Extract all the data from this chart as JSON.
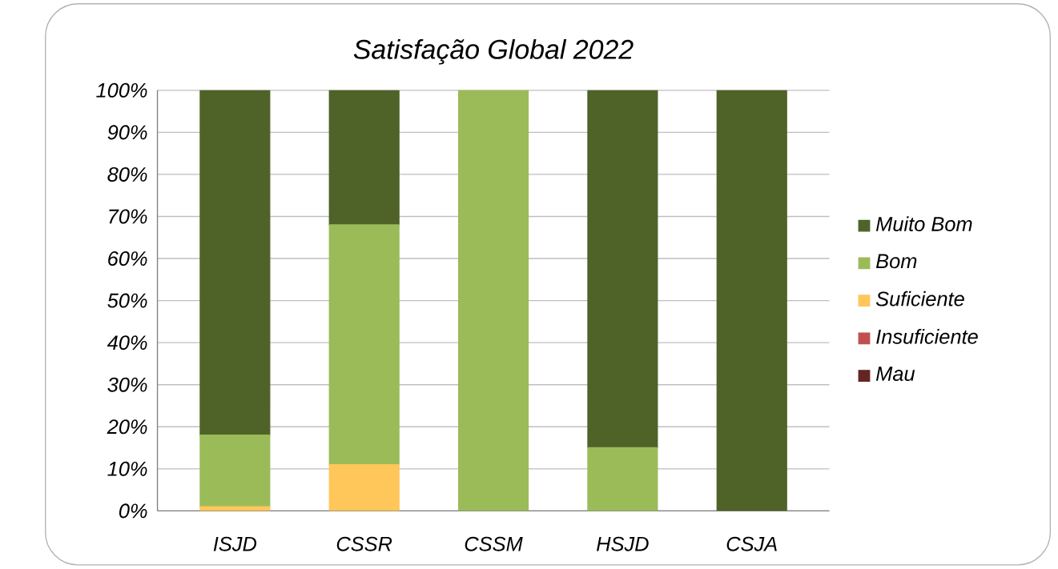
{
  "chart_data": {
    "type": "bar",
    "title": "Satisfação Global 2022",
    "stacked": true,
    "categories": [
      "ISJD",
      "CSSR",
      "CSSM",
      "HSJD",
      "CSJA"
    ],
    "series": [
      {
        "name": "Mau",
        "color": "#632523",
        "values": [
          0,
          0,
          0,
          0,
          0
        ]
      },
      {
        "name": "Insuficiente",
        "color": "#c0504d",
        "values": [
          0,
          0,
          0,
          0,
          0
        ]
      },
      {
        "name": "Suficiente",
        "color": "#ffc65a",
        "values": [
          1,
          11,
          0,
          0,
          0
        ]
      },
      {
        "name": "Bom",
        "color": "#9bbb59",
        "values": [
          17,
          57,
          100,
          15,
          0
        ]
      },
      {
        "name": "Muito Bom",
        "color": "#4f6228",
        "values": [
          82,
          32,
          0,
          85,
          100
        ]
      }
    ],
    "ylim": [
      0,
      100
    ],
    "yticks": [
      {
        "value": 0,
        "label": "0%"
      },
      {
        "value": 10,
        "label": "10%"
      },
      {
        "value": 20,
        "label": "20%"
      },
      {
        "value": 30,
        "label": "30%"
      },
      {
        "value": 40,
        "label": "40%"
      },
      {
        "value": 50,
        "label": "50%"
      },
      {
        "value": 60,
        "label": "60%"
      },
      {
        "value": 70,
        "label": "70%"
      },
      {
        "value": 80,
        "label": "80%"
      },
      {
        "value": 90,
        "label": "90%"
      },
      {
        "value": 100,
        "label": "100%"
      }
    ],
    "grid": "y",
    "legend": "right"
  }
}
